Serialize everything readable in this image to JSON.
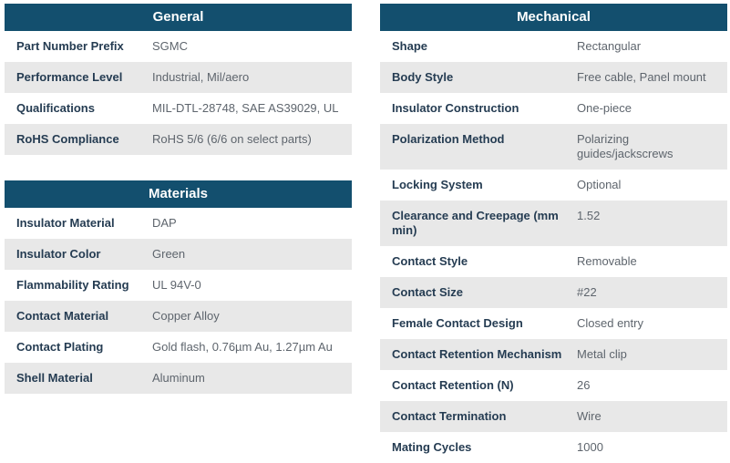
{
  "colors": {
    "header_bg": "#134f6e",
    "header_text": "#ffffff",
    "row_alt_bg": "#e8e8e8",
    "label_text": "#253c52",
    "value_text": "#5e656d"
  },
  "tables": {
    "general": {
      "title": "General",
      "rows": [
        {
          "label": "Part Number Prefix",
          "value": "SGMC"
        },
        {
          "label": "Performance Level",
          "value": "Industrial, Mil/aero"
        },
        {
          "label": "Qualifications",
          "value": "MIL-DTL-28748, SAE AS39029, UL"
        },
        {
          "label": "RoHS Compliance",
          "value": "RoHS 5/6 (6/6 on select parts)"
        }
      ]
    },
    "materials": {
      "title": "Materials",
      "rows": [
        {
          "label": "Insulator Material",
          "value": "DAP"
        },
        {
          "label": "Insulator Color",
          "value": "Green"
        },
        {
          "label": "Flammability Rating",
          "value": "UL 94V-0"
        },
        {
          "label": "Contact Material",
          "value": "Copper Alloy"
        },
        {
          "label": "Contact Plating",
          "value": "Gold flash, 0.76µm Au, 1.27µm Au"
        },
        {
          "label": "Shell Material",
          "value": "Aluminum"
        }
      ]
    },
    "mechanical": {
      "title": "Mechanical",
      "rows": [
        {
          "label": "Shape",
          "value": "Rectangular"
        },
        {
          "label": "Body Style",
          "value": "Free cable, Panel mount"
        },
        {
          "label": "Insulator Construction",
          "value": "One-piece"
        },
        {
          "label": "Polarization Method",
          "value": "Polarizing guides/jackscrews"
        },
        {
          "label": "Locking System",
          "value": "Optional"
        },
        {
          "label": "Clearance and Creepage (mm min)",
          "value": "1.52"
        },
        {
          "label": "Contact Style",
          "value": "Removable"
        },
        {
          "label": "Contact Size",
          "value": "#22"
        },
        {
          "label": "Female Contact Design",
          "value": "Closed entry"
        },
        {
          "label": "Contact Retention Mechanism",
          "value": "Metal clip"
        },
        {
          "label": "Contact Retention (N)",
          "value": "26"
        },
        {
          "label": "Contact Termination",
          "value": "Wire"
        },
        {
          "label": "Mating Cycles",
          "value": "1000"
        }
      ]
    }
  }
}
